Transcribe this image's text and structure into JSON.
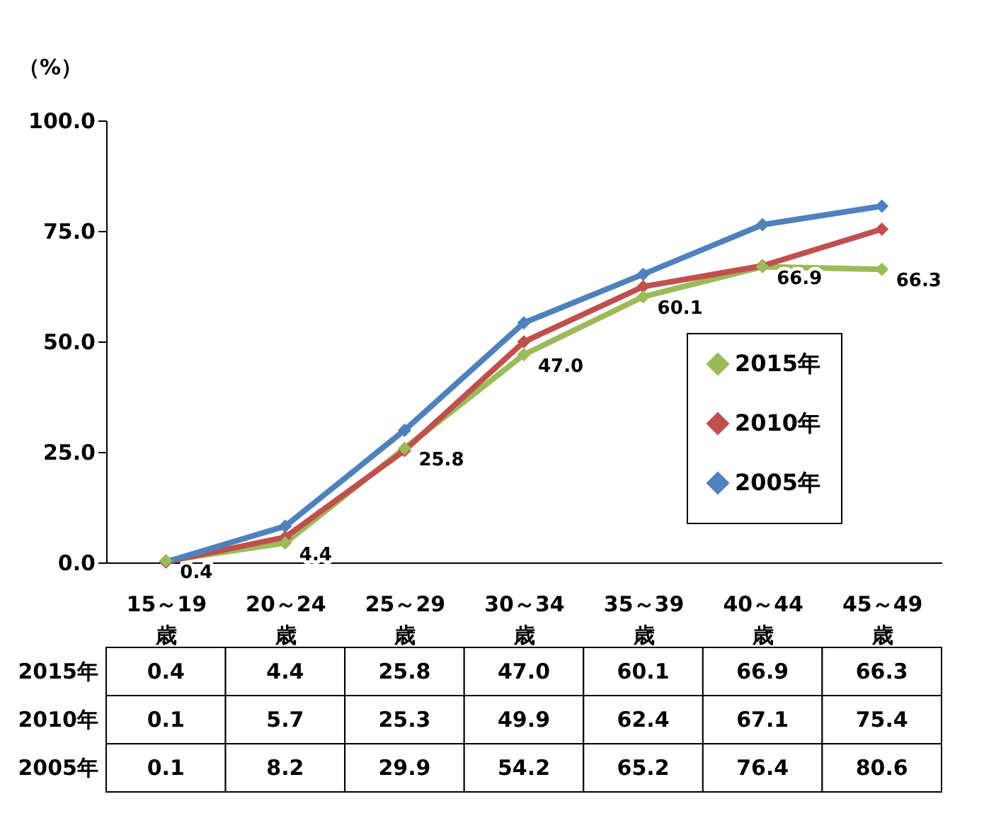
{
  "chart_data": {
    "type": "line",
    "ylabel": "（%）",
    "categories": [
      "15～19歳",
      "20～24歳",
      "25～29歳",
      "30～34歳",
      "35～39歳",
      "40～44歳",
      "45～49歳"
    ],
    "series": [
      {
        "name": "2015年",
        "color": "#9bbb59",
        "values": [
          0.4,
          4.4,
          25.8,
          47.0,
          60.1,
          66.9,
          66.3
        ],
        "value_labels": [
          "0.4",
          "4.4",
          "25.8",
          "47.0",
          "60.1",
          "66.9",
          "66.3"
        ]
      },
      {
        "name": "2010年",
        "color": "#c0504d",
        "values": [
          0.1,
          5.7,
          25.3,
          49.9,
          62.4,
          67.1,
          75.4
        ]
      },
      {
        "name": "2005年",
        "color": "#4f81bd",
        "values": [
          0.1,
          8.2,
          29.9,
          54.2,
          65.2,
          76.4,
          80.6
        ]
      }
    ],
    "ylim": [
      0,
      100
    ],
    "yticks": [
      {
        "value": 0,
        "label": "0.0"
      },
      {
        "value": 25,
        "label": "25.0"
      },
      {
        "value": 50,
        "label": "50.0"
      },
      {
        "value": 75,
        "label": "75.0"
      },
      {
        "value": 100,
        "label": "100.0"
      }
    ],
    "grid": false,
    "legend": "bottom right",
    "marker": "diamond",
    "line_style": "solid",
    "data_labels": true
  }
}
